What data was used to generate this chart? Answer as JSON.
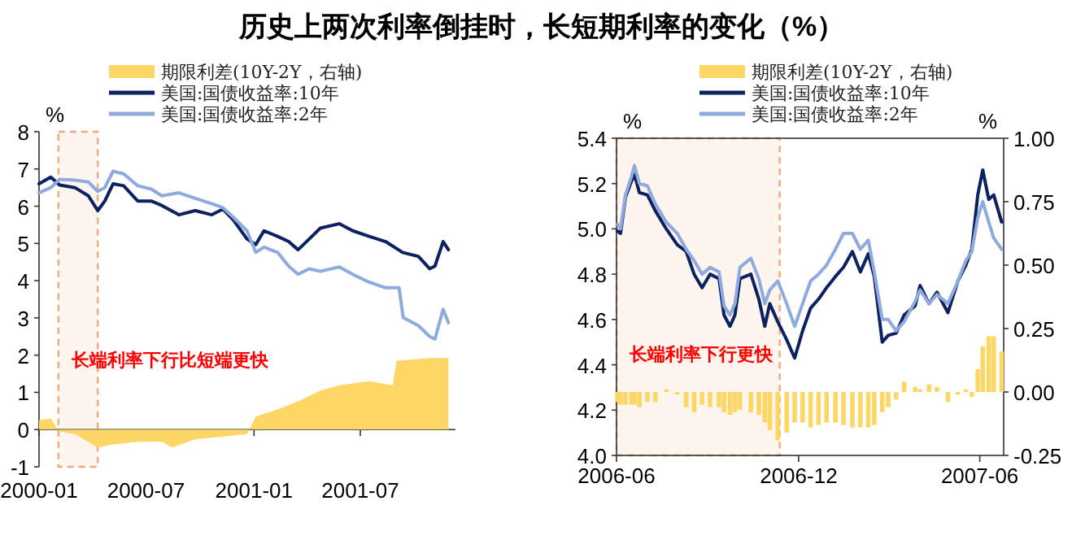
{
  "chart_data": [
    {
      "type": "line",
      "title": "历史上两次利率倒挂时，长短期利率的变化（%）",
      "ylabel": "%",
      "annotations": [
        "长端利率下行比短端更快"
      ],
      "legend": "top",
      "xlim": [
        "2000-01-01",
        "2001-12-10"
      ],
      "xticks": [
        {
          "value": "2000-01-01",
          "label": "2000-01"
        },
        {
          "value": "2000-07-01",
          "label": "2000-07"
        },
        {
          "value": "2001-01-01",
          "label": "2001-01"
        },
        {
          "value": "2001-07-01",
          "label": "2001-07"
        }
      ],
      "ylim": [
        -1,
        8
      ],
      "yticks": [
        -1,
        0,
        1,
        2,
        3,
        4,
        5,
        6,
        7,
        8
      ],
      "bands": [
        {
          "axis": "x",
          "from": "2000-02-03",
          "to": "2000-04-10",
          "color": "#f4a97a"
        }
      ],
      "series": [
        {
          "name": "期限利差(10Y-2Y，右轴)",
          "type": "area",
          "color": "#fdd766",
          "x": [
            "2000-01-01",
            "2000-01-21",
            "2000-02-04",
            "2000-03-02",
            "2000-04-10",
            "2000-05-06",
            "2000-06-17",
            "2000-07-28",
            "2000-08-15",
            "2000-09-23",
            "2000-11-09",
            "2000-12-20",
            "2001-01-04",
            "2001-02-10",
            "2001-03-17",
            "2001-04-24",
            "2001-05-26",
            "2001-07-16",
            "2001-08-25",
            "2001-09-01",
            "2001-10-27",
            "2001-11-28"
          ],
          "values": [
            0.25,
            0.3,
            -0.05,
            -0.12,
            -0.48,
            -0.4,
            -0.33,
            -0.33,
            -0.48,
            -0.26,
            -0.19,
            -0.12,
            0.35,
            0.54,
            0.76,
            1.05,
            1.19,
            1.3,
            1.19,
            1.85,
            1.92,
            1.92
          ]
        },
        {
          "name": "美国:国债收益率:10年",
          "color": "#0b2160",
          "x": [
            "2000-01-01",
            "2000-01-21",
            "2000-02-05",
            "2000-03-02",
            "2000-03-25",
            "2000-04-10",
            "2000-04-22",
            "2000-05-06",
            "2000-05-24",
            "2000-06-17",
            "2000-07-10",
            "2000-07-28",
            "2000-08-26",
            "2000-09-23",
            "2000-10-21",
            "2000-11-09",
            "2000-11-27",
            "2000-12-20",
            "2001-01-04",
            "2001-01-18",
            "2001-02-10",
            "2001-03-01",
            "2001-03-17",
            "2001-04-05",
            "2001-04-24",
            "2001-05-26",
            "2001-06-18",
            "2001-07-16",
            "2001-08-13",
            "2001-09-11",
            "2001-10-08",
            "2001-10-27",
            "2001-11-05",
            "2001-11-19",
            "2001-11-28"
          ],
          "values": [
            6.6,
            6.78,
            6.57,
            6.5,
            6.28,
            5.88,
            6.14,
            6.6,
            6.55,
            6.14,
            6.14,
            6.02,
            5.77,
            5.88,
            5.77,
            5.92,
            5.63,
            5.12,
            4.97,
            5.34,
            5.19,
            5.05,
            4.83,
            5.12,
            5.41,
            5.53,
            5.34,
            5.19,
            5.05,
            4.76,
            4.65,
            4.32,
            4.39,
            5.05,
            4.83
          ]
        },
        {
          "name": "美国:国债收益率:2年",
          "color": "#8eaadf",
          "x": [
            "2000-01-01",
            "2000-01-21",
            "2000-02-05",
            "2000-03-02",
            "2000-03-25",
            "2000-04-10",
            "2000-04-22",
            "2000-05-06",
            "2000-05-24",
            "2000-06-17",
            "2000-07-10",
            "2000-07-28",
            "2000-08-26",
            "2000-09-23",
            "2000-10-21",
            "2000-11-09",
            "2000-11-27",
            "2000-12-20",
            "2001-01-04",
            "2001-01-18",
            "2001-02-10",
            "2001-03-01",
            "2001-03-17",
            "2001-04-05",
            "2001-04-24",
            "2001-05-26",
            "2001-06-18",
            "2001-07-16",
            "2001-08-13",
            "2001-09-05",
            "2001-09-12",
            "2001-10-08",
            "2001-10-27",
            "2001-11-05",
            "2001-11-19",
            "2001-11-28"
          ],
          "values": [
            6.36,
            6.5,
            6.72,
            6.7,
            6.65,
            6.4,
            6.5,
            6.94,
            6.87,
            6.55,
            6.46,
            6.28,
            6.36,
            6.21,
            6.07,
            5.96,
            5.7,
            5.34,
            4.76,
            4.9,
            4.76,
            4.39,
            4.17,
            4.32,
            4.25,
            4.37,
            4.17,
            3.96,
            3.81,
            3.81,
            3.01,
            2.79,
            2.5,
            2.43,
            3.23,
            2.87
          ]
        }
      ]
    },
    {
      "type": "line",
      "ylabel": "%",
      "y2label": "%",
      "annotations": [
        "长端利率下行更快"
      ],
      "legend": "top",
      "xlim": [
        "2006-06-01",
        "2007-06-25"
      ],
      "xticks": [
        {
          "value": "2006-06-01",
          "label": "2006-06"
        },
        {
          "value": "2006-12-01",
          "label": "2006-12"
        },
        {
          "value": "2007-06-01",
          "label": "2007-06"
        }
      ],
      "ylim": [
        4.0,
        5.4
      ],
      "yticks": [
        {
          "value": 4.0,
          "label": "4.0"
        },
        {
          "value": 4.2,
          "label": "4.2"
        },
        {
          "value": 4.4,
          "label": "4.4"
        },
        {
          "value": 4.6,
          "label": "4.6"
        },
        {
          "value": 4.8,
          "label": "4.8"
        },
        {
          "value": 5.0,
          "label": "5.0"
        },
        {
          "value": 5.2,
          "label": "5.2"
        },
        {
          "value": 5.4,
          "label": "5.4"
        }
      ],
      "y2lim": [
        -0.25,
        1.0
      ],
      "y2ticks": [
        {
          "value": -0.25,
          "label": "-0.25"
        },
        {
          "value": 0,
          "label": "0.00"
        },
        {
          "value": 0.25,
          "label": "0.25"
        },
        {
          "value": 0.5,
          "label": "0.50"
        },
        {
          "value": 0.75,
          "label": "0.75"
        },
        {
          "value": 1.0,
          "label": "1.00"
        }
      ],
      "bands": [
        {
          "axis": "x",
          "from": "2006-06-01",
          "to": "2006-11-12",
          "color": "#f4a97a"
        }
      ],
      "series": [
        {
          "name": "期限利差(10Y-2Y，右轴)",
          "type": "bar",
          "axis": "y2",
          "color": "#fdd766",
          "x": [
            "2006-06-02",
            "2006-06-05",
            "2006-06-10",
            "2006-06-16",
            "2006-06-19",
            "2006-06-24",
            "2006-07-02",
            "2006-07-10",
            "2006-07-21",
            "2006-08-01",
            "2006-08-10",
            "2006-08-18",
            "2006-08-26",
            "2006-09-03",
            "2006-09-12",
            "2006-09-17",
            "2006-09-23",
            "2006-09-28",
            "2006-10-03",
            "2006-10-14",
            "2006-10-22",
            "2006-10-28",
            "2006-11-02",
            "2006-11-10",
            "2006-11-19",
            "2006-11-27",
            "2006-12-05",
            "2006-12-13",
            "2006-12-21",
            "2006-12-29",
            "2007-01-07",
            "2007-01-15",
            "2007-01-24",
            "2007-02-01",
            "2007-02-09",
            "2007-02-15",
            "2007-02-23",
            "2007-03-01",
            "2007-03-09",
            "2007-03-17",
            "2007-03-28",
            "2007-04-02",
            "2007-04-11",
            "2007-04-19",
            "2007-04-30",
            "2007-05-10",
            "2007-05-18",
            "2007-05-24",
            "2007-05-30",
            "2007-06-04",
            "2007-06-10",
            "2007-06-15",
            "2007-06-23"
          ],
          "values": [
            -0.04,
            -0.05,
            -0.05,
            -0.05,
            -0.05,
            -0.06,
            -0.04,
            -0.04,
            0.01,
            -0.01,
            -0.06,
            -0.08,
            -0.05,
            -0.06,
            -0.06,
            -0.08,
            -0.09,
            -0.08,
            -0.07,
            -0.08,
            -0.09,
            -0.12,
            -0.15,
            -0.19,
            -0.16,
            -0.12,
            -0.12,
            -0.14,
            -0.13,
            -0.12,
            -0.12,
            -0.13,
            -0.14,
            -0.14,
            -0.14,
            -0.13,
            -0.08,
            -0.06,
            -0.03,
            0.04,
            0.02,
            0.01,
            0.03,
            0.02,
            -0.04,
            -0.01,
            0.01,
            -0.02,
            0.09,
            0.18,
            0.22,
            0.22,
            0.16
          ]
        },
        {
          "name": "美国:国债收益率:10年",
          "color": "#0b2160",
          "x": [
            "2006-06-02",
            "2006-06-05",
            "2006-06-10",
            "2006-06-16",
            "2006-06-19",
            "2006-06-24",
            "2006-07-02",
            "2006-07-10",
            "2006-07-21",
            "2006-08-01",
            "2006-08-10",
            "2006-08-18",
            "2006-08-26",
            "2006-09-03",
            "2006-09-12",
            "2006-09-17",
            "2006-09-23",
            "2006-09-28",
            "2006-10-03",
            "2006-10-14",
            "2006-10-22",
            "2006-10-28",
            "2006-11-02",
            "2006-11-10",
            "2006-11-19",
            "2006-11-27",
            "2006-12-05",
            "2006-12-13",
            "2006-12-21",
            "2006-12-29",
            "2007-01-07",
            "2007-01-15",
            "2007-01-24",
            "2007-02-01",
            "2007-02-09",
            "2007-02-15",
            "2007-02-23",
            "2007-03-01",
            "2007-03-09",
            "2007-03-17",
            "2007-03-28",
            "2007-04-02",
            "2007-04-11",
            "2007-04-19",
            "2007-04-30",
            "2007-05-10",
            "2007-05-18",
            "2007-05-24",
            "2007-05-30",
            "2007-06-04",
            "2007-06-10",
            "2007-06-15",
            "2007-06-23"
          ],
          "values": [
            4.99,
            4.98,
            5.14,
            5.21,
            5.24,
            5.16,
            5.15,
            5.08,
            5.0,
            4.93,
            4.9,
            4.8,
            4.74,
            4.8,
            4.78,
            4.62,
            4.57,
            4.62,
            4.78,
            4.8,
            4.69,
            4.57,
            4.67,
            4.59,
            4.51,
            4.43,
            4.55,
            4.65,
            4.69,
            4.74,
            4.79,
            4.83,
            4.9,
            4.81,
            4.89,
            4.79,
            4.5,
            4.53,
            4.54,
            4.62,
            4.66,
            4.75,
            4.67,
            4.72,
            4.63,
            4.77,
            4.84,
            4.91,
            5.15,
            5.26,
            5.13,
            5.15,
            5.03
          ]
        },
        {
          "name": "美国:国债收益率:2年",
          "color": "#8eaadf",
          "x": [
            "2006-06-02",
            "2006-06-05",
            "2006-06-10",
            "2006-06-16",
            "2006-06-19",
            "2006-06-24",
            "2006-07-02",
            "2006-07-10",
            "2006-07-21",
            "2006-08-01",
            "2006-08-10",
            "2006-08-18",
            "2006-08-26",
            "2006-09-03",
            "2006-09-12",
            "2006-09-17",
            "2006-09-23",
            "2006-09-28",
            "2006-10-03",
            "2006-10-14",
            "2006-10-22",
            "2006-10-28",
            "2006-11-02",
            "2006-11-10",
            "2006-11-19",
            "2006-11-27",
            "2006-12-05",
            "2006-12-13",
            "2006-12-21",
            "2006-12-29",
            "2007-01-07",
            "2007-01-15",
            "2007-01-24",
            "2007-02-01",
            "2007-02-09",
            "2007-02-15",
            "2007-02-23",
            "2007-03-01",
            "2007-03-09",
            "2007-03-17",
            "2007-03-28",
            "2007-04-02",
            "2007-04-11",
            "2007-04-19",
            "2007-04-30",
            "2007-05-10",
            "2007-05-18",
            "2007-05-24",
            "2007-05-30",
            "2007-06-04",
            "2007-06-10",
            "2007-06-15",
            "2007-06-23"
          ],
          "values": [
            5.02,
            5.0,
            5.15,
            5.23,
            5.28,
            5.2,
            5.19,
            5.11,
            5.03,
            4.98,
            4.91,
            4.86,
            4.8,
            4.83,
            4.81,
            4.66,
            4.62,
            4.67,
            4.83,
            4.87,
            4.78,
            4.67,
            4.73,
            4.77,
            4.67,
            4.57,
            4.67,
            4.77,
            4.8,
            4.84,
            4.91,
            4.98,
            4.98,
            4.91,
            4.95,
            4.81,
            4.6,
            4.6,
            4.55,
            4.59,
            4.68,
            4.73,
            4.67,
            4.71,
            4.67,
            4.77,
            4.86,
            4.9,
            5.05,
            5.12,
            5.03,
            4.96,
            4.91
          ]
        }
      ]
    }
  ]
}
